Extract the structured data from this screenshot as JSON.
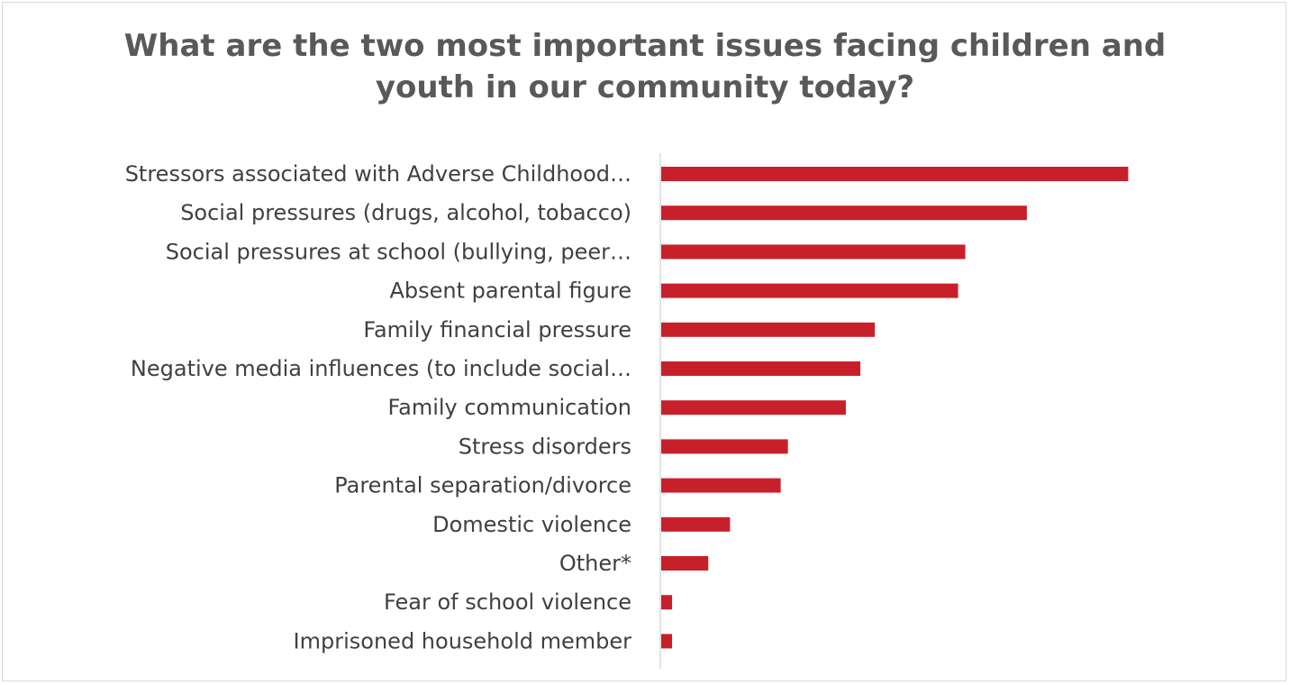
{
  "chart_data": {
    "type": "bar",
    "orientation": "horizontal",
    "title": "What are the two most important issues facing children and youth in our community today?",
    "title_lines": [
      "What are the two most important issues facing children and",
      "youth in our community today?"
    ],
    "categories": [
      "Stressors associated with Adverse Childhood…",
      "Social pressures (drugs, alcohol, tobacco)",
      "Social pressures at school (bullying, peer…",
      "Absent parental figure",
      "Family financial pressure",
      "Negative media influences (to include social…",
      "Family communication",
      "Stress disorders",
      "Parental separation/divorce",
      "Domestic violence",
      "Other*",
      "Fear of school violence",
      "Imprisoned household member"
    ],
    "values": [
      129,
      101,
      84,
      82,
      59,
      55,
      51,
      35,
      33,
      19,
      13,
      3,
      3
    ],
    "xlim": [
      0,
      160
    ],
    "bar_color": "#c8202a",
    "axis_color": "#d9d9d9",
    "grid": false,
    "legend": false
  }
}
